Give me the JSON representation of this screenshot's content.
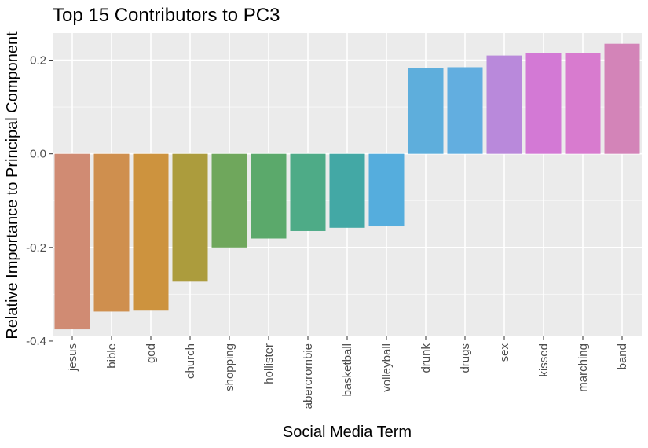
{
  "chart_data": {
    "type": "bar",
    "title": "Top 15 Contributors to PC3",
    "xlabel": "Social Media Term",
    "ylabel": "Relative Importance to Principal Component",
    "categories": [
      "jesus",
      "bible",
      "god",
      "church",
      "shopping",
      "hollister",
      "abercrombie",
      "basketball",
      "volleyball",
      "drunk",
      "drugs",
      "sex",
      "kissed",
      "marching",
      "band"
    ],
    "values": [
      -0.375,
      -0.337,
      -0.335,
      -0.273,
      -0.2,
      -0.181,
      -0.165,
      -0.158,
      -0.155,
      0.183,
      0.185,
      0.21,
      0.215,
      0.216,
      0.235
    ],
    "colors": [
      "#D08B73",
      "#CF8F4E",
      "#CD933E",
      "#AC9C3D",
      "#6FA75C",
      "#5BA96B",
      "#4EAB87",
      "#43A8A5",
      "#55ADDD",
      "#5EAEDC",
      "#62AEE0",
      "#B989DB",
      "#D379D5",
      "#D87BCF",
      "#D384B8"
    ],
    "yticks": [
      -0.4,
      -0.2,
      0.0,
      0.2
    ],
    "ytick_labels": [
      "-0.4",
      "-0.2",
      "0.0",
      "0.2"
    ],
    "ylim": [
      -0.4,
      0.26
    ],
    "grid": true,
    "legend": "none"
  }
}
